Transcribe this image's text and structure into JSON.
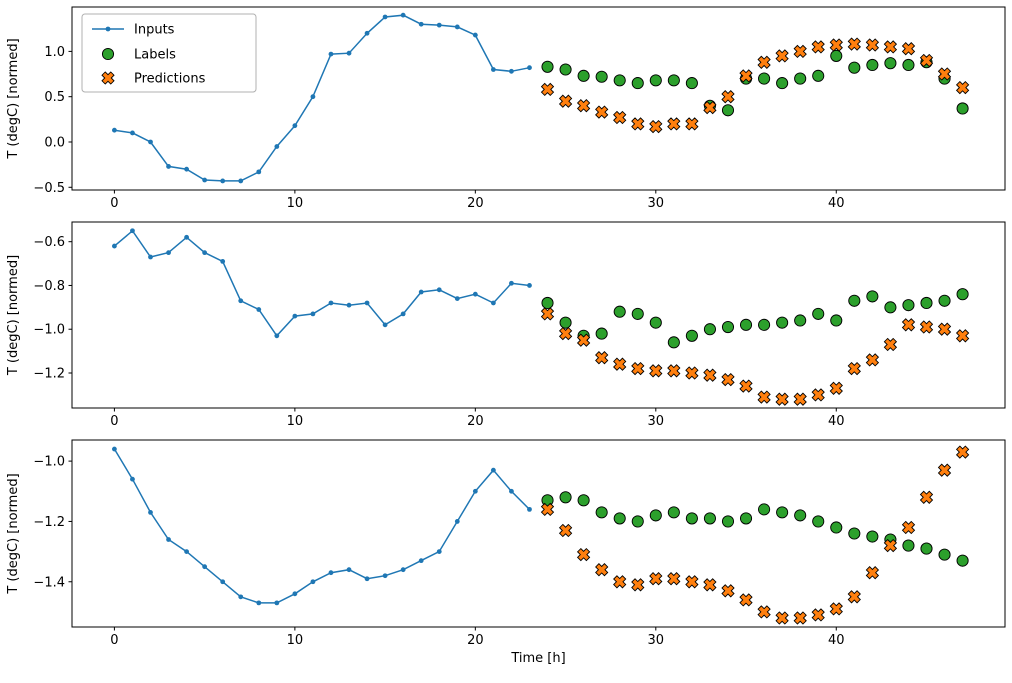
{
  "figure": {
    "xlabel": "Time [h]",
    "ylabel": "T (degC) [normed]",
    "legend_entries": [
      "Inputs",
      "Labels",
      "Predictions"
    ],
    "colors": {
      "inputs": "#1f77b4",
      "labels": "#2ca02c",
      "predictions": "#ff7f0e",
      "spine": "#000000",
      "legend_border": "#b0b0b0"
    }
  },
  "chart_data": [
    {
      "type": "line",
      "title": "",
      "xlabel": "",
      "ylabel": "T (degC) [normed]",
      "xlim": [
        -2.35,
        49.35
      ],
      "ylim": [
        -0.53,
        1.49
      ],
      "xticks": [
        0,
        10,
        20,
        30,
        40
      ],
      "yticks": [
        -0.5,
        0.0,
        0.5,
        1.0
      ],
      "legend": true,
      "series": [
        {
          "name": "Inputs",
          "type": "line",
          "color": "#1f77b4",
          "x": [
            0,
            1,
            2,
            3,
            4,
            5,
            6,
            7,
            8,
            9,
            10,
            11,
            12,
            13,
            14,
            15,
            16,
            17,
            18,
            19,
            20,
            21,
            22,
            23
          ],
          "y": [
            0.13,
            0.1,
            0.0,
            -0.27,
            -0.3,
            -0.42,
            -0.43,
            -0.43,
            -0.33,
            -0.05,
            0.18,
            0.5,
            0.97,
            0.98,
            1.2,
            1.38,
            1.4,
            1.3,
            1.29,
            1.27,
            1.18,
            0.8,
            0.78,
            0.82
          ]
        },
        {
          "name": "Labels",
          "type": "scatter-circle",
          "color": "#2ca02c",
          "x": [
            24,
            25,
            26,
            27,
            28,
            29,
            30,
            31,
            32,
            33,
            34,
            35,
            36,
            37,
            38,
            39,
            40,
            41,
            42,
            43,
            44,
            45,
            46,
            47
          ],
          "y": [
            0.83,
            0.8,
            0.73,
            0.72,
            0.68,
            0.65,
            0.68,
            0.68,
            0.65,
            0.4,
            0.35,
            0.7,
            0.7,
            0.65,
            0.7,
            0.73,
            0.95,
            0.82,
            0.85,
            0.87,
            0.85,
            0.88,
            0.7,
            0.37
          ]
        },
        {
          "name": "Predictions",
          "type": "scatter-x",
          "color": "#ff7f0e",
          "x": [
            24,
            25,
            26,
            27,
            28,
            29,
            30,
            31,
            32,
            33,
            34,
            35,
            36,
            37,
            38,
            39,
            40,
            41,
            42,
            43,
            44,
            45,
            46,
            47
          ],
          "y": [
            0.58,
            0.45,
            0.4,
            0.33,
            0.27,
            0.2,
            0.17,
            0.2,
            0.2,
            0.38,
            0.5,
            0.73,
            0.88,
            0.95,
            1.0,
            1.05,
            1.07,
            1.08,
            1.07,
            1.05,
            1.03,
            0.9,
            0.75,
            0.6
          ]
        }
      ]
    },
    {
      "type": "line",
      "title": "",
      "xlabel": "",
      "ylabel": "T (degC) [normed]",
      "xlim": [
        -2.35,
        49.35
      ],
      "ylim": [
        -1.36,
        -0.51
      ],
      "xticks": [
        0,
        10,
        20,
        30,
        40
      ],
      "yticks": [
        -0.6,
        -0.8,
        -1.0,
        -1.2
      ],
      "legend": false,
      "series": [
        {
          "name": "Inputs",
          "type": "line",
          "color": "#1f77b4",
          "x": [
            0,
            1,
            2,
            3,
            4,
            5,
            6,
            7,
            8,
            9,
            10,
            11,
            12,
            13,
            14,
            15,
            16,
            17,
            18,
            19,
            20,
            21,
            22,
            23
          ],
          "y": [
            -0.62,
            -0.55,
            -0.67,
            -0.65,
            -0.58,
            -0.65,
            -0.69,
            -0.87,
            -0.91,
            -1.03,
            -0.94,
            -0.93,
            -0.88,
            -0.89,
            -0.88,
            -0.98,
            -0.93,
            -0.83,
            -0.82,
            -0.86,
            -0.84,
            -0.88,
            -0.79,
            -0.8
          ]
        },
        {
          "name": "Labels",
          "type": "scatter-circle",
          "color": "#2ca02c",
          "x": [
            24,
            25,
            26,
            27,
            28,
            29,
            30,
            31,
            32,
            33,
            34,
            35,
            36,
            37,
            38,
            39,
            40,
            41,
            42,
            43,
            44,
            45,
            46,
            47
          ],
          "y": [
            -0.88,
            -0.97,
            -1.03,
            -1.02,
            -0.92,
            -0.93,
            -0.97,
            -1.06,
            -1.03,
            -1.0,
            -0.99,
            -0.98,
            -0.98,
            -0.97,
            -0.96,
            -0.93,
            -0.96,
            -0.87,
            -0.85,
            -0.9,
            -0.89,
            -0.88,
            -0.87,
            -0.84
          ]
        },
        {
          "name": "Predictions",
          "type": "scatter-x",
          "color": "#ff7f0e",
          "x": [
            24,
            25,
            26,
            27,
            28,
            29,
            30,
            31,
            32,
            33,
            34,
            35,
            36,
            37,
            38,
            39,
            40,
            41,
            42,
            43,
            44,
            45,
            46,
            47
          ],
          "y": [
            -0.93,
            -1.02,
            -1.05,
            -1.13,
            -1.16,
            -1.18,
            -1.19,
            -1.19,
            -1.2,
            -1.21,
            -1.23,
            -1.26,
            -1.31,
            -1.32,
            -1.32,
            -1.3,
            -1.27,
            -1.18,
            -1.14,
            -1.07,
            -0.98,
            -0.99,
            -1.0,
            -1.03
          ]
        }
      ]
    },
    {
      "type": "line",
      "title": "",
      "xlabel": "Time [h]",
      "ylabel": "T (degC) [normed]",
      "xlim": [
        -2.35,
        49.35
      ],
      "ylim": [
        -1.55,
        -0.93
      ],
      "xticks": [
        0,
        10,
        20,
        30,
        40
      ],
      "yticks": [
        -1.0,
        -1.2,
        -1.4
      ],
      "legend": false,
      "series": [
        {
          "name": "Inputs",
          "type": "line",
          "color": "#1f77b4",
          "x": [
            0,
            1,
            2,
            3,
            4,
            5,
            6,
            7,
            8,
            9,
            10,
            11,
            12,
            13,
            14,
            15,
            16,
            17,
            18,
            19,
            20,
            21,
            22,
            23
          ],
          "y": [
            -0.96,
            -1.06,
            -1.17,
            -1.26,
            -1.3,
            -1.35,
            -1.4,
            -1.45,
            -1.47,
            -1.47,
            -1.44,
            -1.4,
            -1.37,
            -1.36,
            -1.39,
            -1.38,
            -1.36,
            -1.33,
            -1.3,
            -1.2,
            -1.1,
            -1.03,
            -1.1,
            -1.16
          ]
        },
        {
          "name": "Labels",
          "type": "scatter-circle",
          "color": "#2ca02c",
          "x": [
            24,
            25,
            26,
            27,
            28,
            29,
            30,
            31,
            32,
            33,
            34,
            35,
            36,
            37,
            38,
            39,
            40,
            41,
            42,
            43,
            44,
            45,
            46,
            47
          ],
          "y": [
            -1.13,
            -1.12,
            -1.13,
            -1.17,
            -1.19,
            -1.2,
            -1.18,
            -1.17,
            -1.19,
            -1.19,
            -1.2,
            -1.19,
            -1.16,
            -1.17,
            -1.18,
            -1.2,
            -1.22,
            -1.24,
            -1.25,
            -1.26,
            -1.28,
            -1.29,
            -1.31,
            -1.33
          ]
        },
        {
          "name": "Predictions",
          "type": "scatter-x",
          "color": "#ff7f0e",
          "x": [
            24,
            25,
            26,
            27,
            28,
            29,
            30,
            31,
            32,
            33,
            34,
            35,
            36,
            37,
            38,
            39,
            40,
            41,
            42,
            43,
            44,
            45,
            46,
            47
          ],
          "y": [
            -1.16,
            -1.23,
            -1.31,
            -1.36,
            -1.4,
            -1.41,
            -1.39,
            -1.39,
            -1.4,
            -1.41,
            -1.43,
            -1.46,
            -1.5,
            -1.52,
            -1.52,
            -1.51,
            -1.49,
            -1.45,
            -1.37,
            -1.28,
            -1.22,
            -1.12,
            -1.03,
            -0.97
          ]
        }
      ]
    }
  ]
}
